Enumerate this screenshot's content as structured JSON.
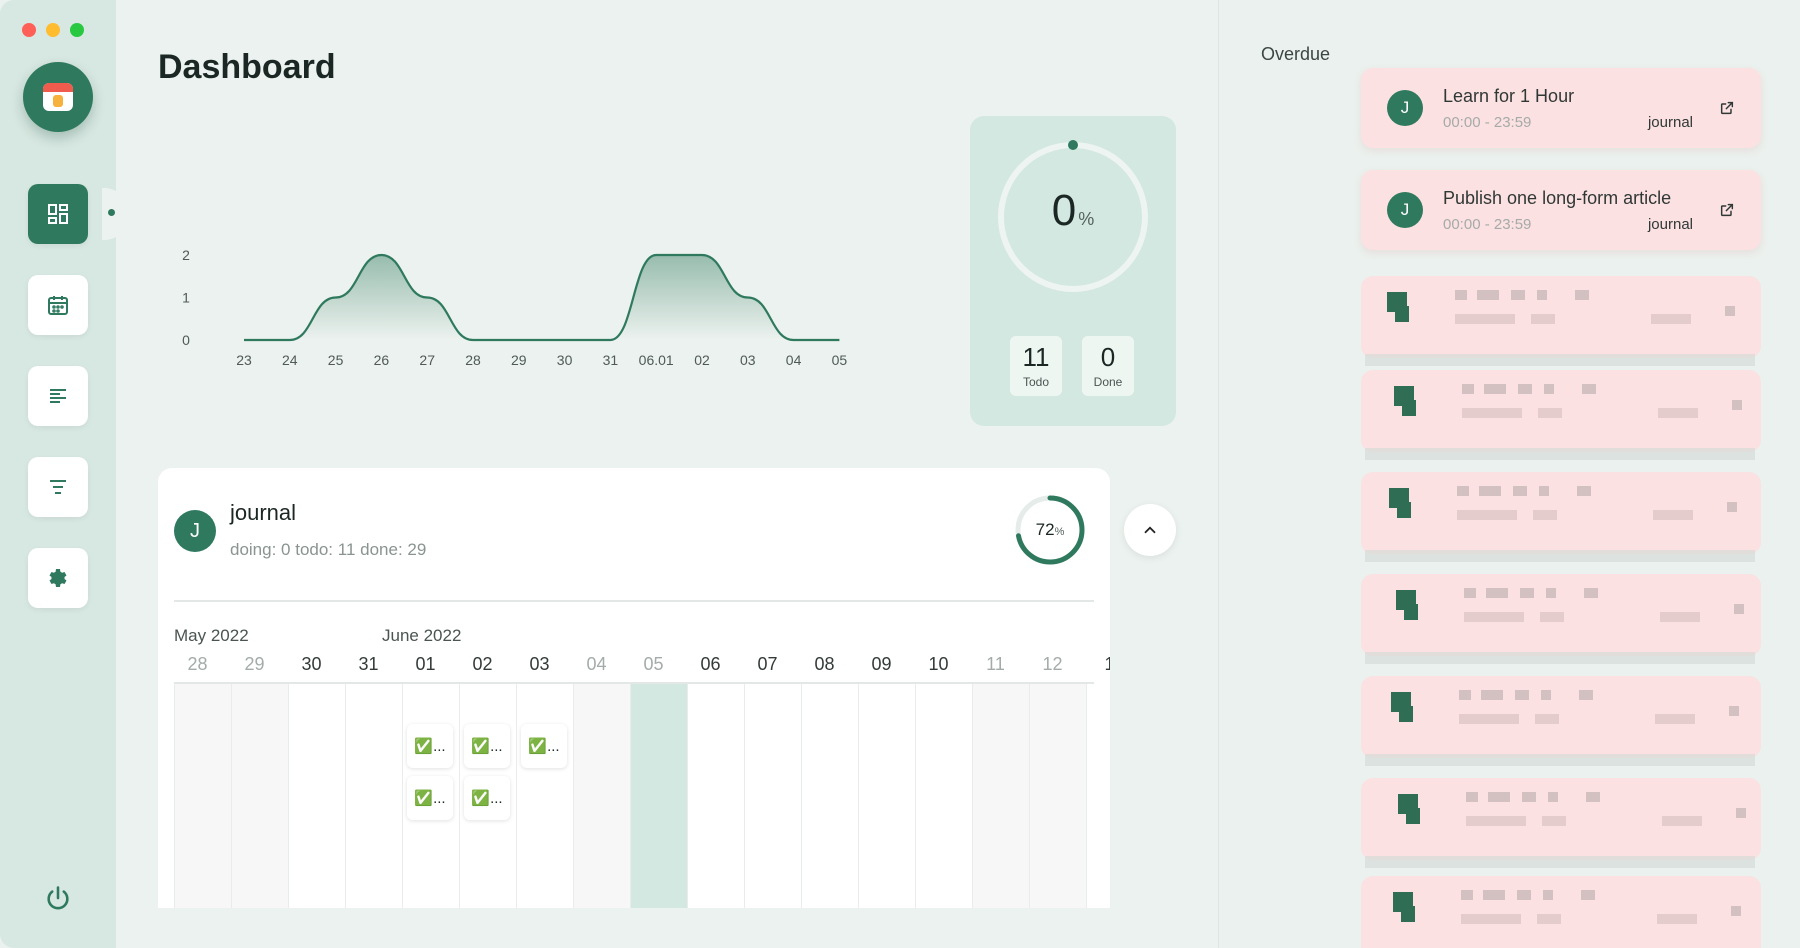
{
  "window": {
    "title": "Dashboard"
  },
  "sidebar": {
    "items": [
      {
        "name": "dashboard",
        "active": true
      },
      {
        "name": "calendar",
        "active": false
      },
      {
        "name": "list-left",
        "active": false
      },
      {
        "name": "list-center",
        "active": false
      },
      {
        "name": "settings",
        "active": false
      }
    ]
  },
  "chart_data": {
    "type": "area",
    "categories": [
      "23",
      "24",
      "25",
      "26",
      "27",
      "28",
      "29",
      "30",
      "31",
      "06.01",
      "02",
      "03",
      "04",
      "05"
    ],
    "values": [
      0,
      0,
      1,
      2,
      1,
      0,
      0,
      0,
      0,
      2,
      2,
      1,
      0,
      0
    ],
    "yticks": [
      "0",
      "1",
      "2"
    ],
    "ylim": [
      0,
      2
    ],
    "color": "#2f7a5e"
  },
  "stats": {
    "percent": "0",
    "percent_sign": "%",
    "todo_count": "11",
    "todo_label": "Todo",
    "done_count": "0",
    "done_label": "Done"
  },
  "project": {
    "avatar": "J",
    "name": "journal",
    "summary": "doing: 0 todo: 11 done: 29",
    "progress": "72",
    "progress_sign": "%",
    "progress_value": 0.72,
    "months": [
      "May 2022",
      "June 2022"
    ],
    "days": [
      "28",
      "29",
      "30",
      "31",
      "01",
      "02",
      "03",
      "04",
      "05",
      "06",
      "07",
      "08",
      "09",
      "10",
      "11",
      "12",
      "1"
    ],
    "muted_days": [
      0,
      1,
      7,
      8,
      14,
      15
    ],
    "weekend_cols": [
      0,
      1,
      7,
      14,
      15
    ],
    "today_col": 8,
    "task_chip_label": "✅..."
  },
  "overdue": {
    "title": "Overdue",
    "items": [
      {
        "avatar": "J",
        "title": "Learn for 1 Hour",
        "time": "00:00 - 23:59",
        "tag": "journal"
      },
      {
        "avatar": "J",
        "title": "Publish one long-form article",
        "time": "00:00 - 23:59",
        "tag": "journal"
      }
    ]
  }
}
